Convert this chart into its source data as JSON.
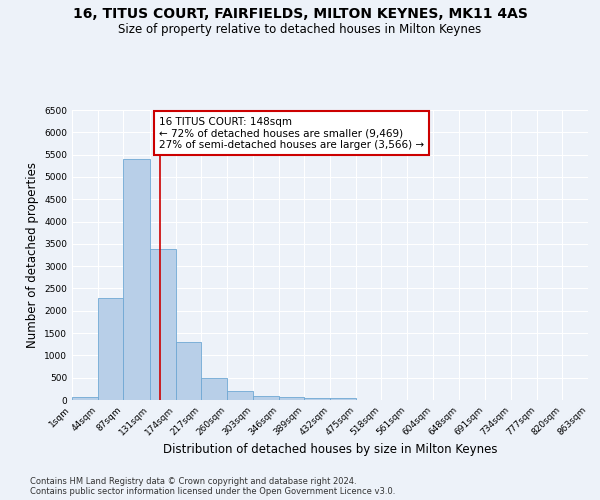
{
  "title": "16, TITUS COURT, FAIRFIELDS, MILTON KEYNES, MK11 4AS",
  "subtitle": "Size of property relative to detached houses in Milton Keynes",
  "xlabel": "Distribution of detached houses by size in Milton Keynes",
  "ylabel": "Number of detached properties",
  "footer_line1": "Contains HM Land Registry data © Crown copyright and database right 2024.",
  "footer_line2": "Contains public sector information licensed under the Open Government Licence v3.0.",
  "bin_edges": [
    1,
    44,
    87,
    131,
    174,
    217,
    260,
    303,
    346,
    389,
    432,
    475,
    518,
    561,
    604,
    648,
    691,
    734,
    777,
    820,
    863
  ],
  "bin_labels": [
    "1sqm",
    "44sqm",
    "87sqm",
    "131sqm",
    "174sqm",
    "217sqm",
    "260sqm",
    "303sqm",
    "346sqm",
    "389sqm",
    "432sqm",
    "475sqm",
    "518sqm",
    "561sqm",
    "604sqm",
    "648sqm",
    "691sqm",
    "734sqm",
    "777sqm",
    "820sqm",
    "863sqm"
  ],
  "bar_heights": [
    75,
    2280,
    5400,
    3380,
    1310,
    485,
    210,
    95,
    60,
    50,
    40,
    5,
    0,
    0,
    0,
    0,
    0,
    0,
    0,
    0
  ],
  "bar_color": "#b8cfe8",
  "bar_edge_color": "#6fa8d4",
  "property_size": 148,
  "property_line_color": "#cc0000",
  "annotation_text": "16 TITUS COURT: 148sqm\n← 72% of detached houses are smaller (9,469)\n27% of semi-detached houses are larger (3,566) →",
  "annotation_box_color": "#ffffff",
  "annotation_box_edge_color": "#cc0000",
  "ylim": [
    0,
    6500
  ],
  "yticks": [
    0,
    500,
    1000,
    1500,
    2000,
    2500,
    3000,
    3500,
    4000,
    4500,
    5000,
    5500,
    6000,
    6500
  ],
  "background_color": "#edf2f9",
  "grid_color": "#ffffff",
  "title_fontsize": 10,
  "subtitle_fontsize": 8.5,
  "axis_label_fontsize": 8.5,
  "tick_fontsize": 6.5,
  "annotation_fontsize": 7.5,
  "footer_fontsize": 6
}
